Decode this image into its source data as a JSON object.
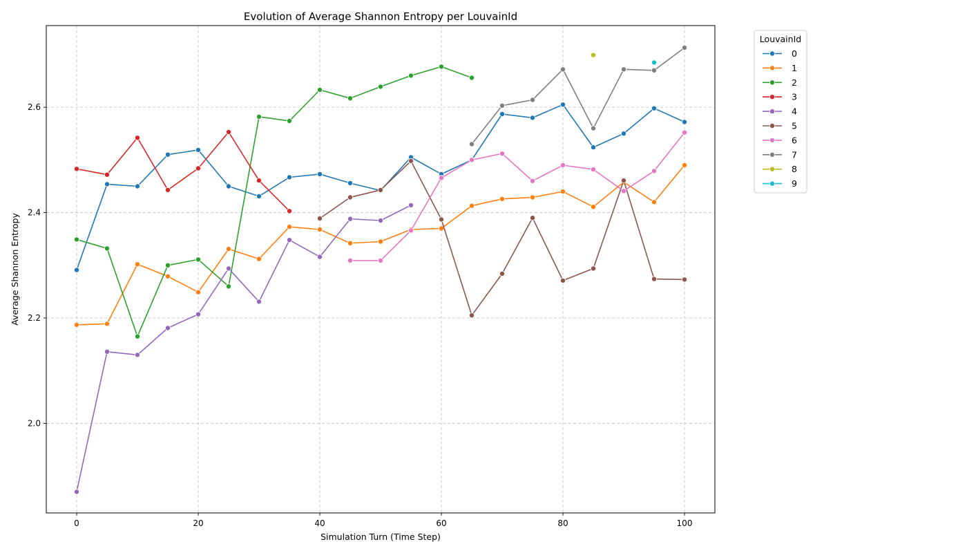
{
  "chart_data": {
    "type": "line",
    "title": "Evolution of Average Shannon Entropy per LouvainId",
    "xlabel": "Simulation Turn (Time Step)",
    "ylabel": "Average Shannon Entropy",
    "xlim": [
      -5,
      105
    ],
    "ylim": [
      1.83,
      2.755
    ],
    "xticks": [
      0,
      20,
      40,
      60,
      80,
      100
    ],
    "yticks": [
      2.0,
      2.2,
      2.4,
      2.6
    ],
    "grid": true,
    "legend_title": "LouvainId",
    "legend_position": "outside-right",
    "series": [
      {
        "name": "0",
        "color": "#1f77b4",
        "points": [
          [
            0,
            2.291
          ],
          [
            5,
            2.454
          ],
          [
            10,
            2.45
          ],
          [
            15,
            2.51
          ],
          [
            20,
            2.519
          ],
          [
            25,
            2.45
          ],
          [
            30,
            2.431
          ],
          [
            35,
            2.467
          ],
          [
            40,
            2.473
          ],
          [
            45,
            2.456
          ],
          [
            50,
            2.442
          ],
          [
            55,
            2.505
          ],
          [
            60,
            2.473
          ],
          [
            65,
            2.5
          ],
          [
            70,
            2.587
          ],
          [
            75,
            2.58
          ],
          [
            80,
            2.605
          ],
          [
            85,
            2.524
          ],
          [
            90,
            2.55
          ],
          [
            95,
            2.598
          ],
          [
            100,
            2.572
          ]
        ]
      },
      {
        "name": "1",
        "color": "#ff7f0e",
        "points": [
          [
            0,
            2.187
          ],
          [
            5,
            2.189
          ],
          [
            10,
            2.302
          ],
          [
            15,
            2.279
          ],
          [
            20,
            2.249
          ],
          [
            25,
            2.331
          ],
          [
            30,
            2.312
          ],
          [
            35,
            2.373
          ],
          [
            40,
            2.368
          ],
          [
            45,
            2.342
          ],
          [
            50,
            2.345
          ],
          [
            55,
            2.368
          ],
          [
            60,
            2.37
          ],
          [
            65,
            2.413
          ],
          [
            70,
            2.426
          ],
          [
            75,
            2.429
          ],
          [
            80,
            2.44
          ],
          [
            85,
            2.411
          ],
          [
            90,
            2.458
          ],
          [
            95,
            2.42
          ],
          [
            100,
            2.49
          ]
        ]
      },
      {
        "name": "2",
        "color": "#2ca02c",
        "points": [
          [
            0,
            2.349
          ],
          [
            5,
            2.332
          ],
          [
            10,
            2.165
          ],
          [
            15,
            2.3
          ],
          [
            20,
            2.311
          ],
          [
            25,
            2.26
          ],
          [
            30,
            2.582
          ],
          [
            35,
            2.574
          ],
          [
            40,
            2.633
          ],
          [
            45,
            2.617
          ],
          [
            50,
            2.639
          ],
          [
            55,
            2.66
          ],
          [
            60,
            2.677
          ],
          [
            65,
            2.656
          ]
        ]
      },
      {
        "name": "3",
        "color": "#d62728",
        "points": [
          [
            0,
            2.483
          ],
          [
            5,
            2.472
          ],
          [
            10,
            2.542
          ],
          [
            15,
            2.443
          ],
          [
            20,
            2.484
          ],
          [
            25,
            2.553
          ],
          [
            30,
            2.461
          ],
          [
            35,
            2.403
          ]
        ]
      },
      {
        "name": "4",
        "color": "#9467bd",
        "points": [
          [
            0,
            1.87
          ],
          [
            5,
            2.136
          ],
          [
            10,
            2.13
          ],
          [
            15,
            2.181
          ],
          [
            20,
            2.207
          ],
          [
            25,
            2.294
          ],
          [
            30,
            2.231
          ],
          [
            35,
            2.348
          ],
          [
            40,
            2.316
          ],
          [
            45,
            2.388
          ],
          [
            50,
            2.385
          ],
          [
            55,
            2.414
          ]
        ]
      },
      {
        "name": "5",
        "color": "#8c564b",
        "points": [
          [
            40,
            2.389
          ],
          [
            45,
            2.429
          ],
          [
            50,
            2.443
          ],
          [
            55,
            2.498
          ],
          [
            60,
            2.387
          ],
          [
            65,
            2.205
          ],
          [
            70,
            2.284
          ],
          [
            75,
            2.39
          ],
          [
            80,
            2.271
          ],
          [
            85,
            2.294
          ],
          [
            90,
            2.461
          ],
          [
            95,
            2.274
          ],
          [
            100,
            2.273
          ]
        ]
      },
      {
        "name": "6",
        "color": "#e377c2",
        "points": [
          [
            45,
            2.309
          ],
          [
            50,
            2.309
          ],
          [
            55,
            2.366
          ],
          [
            60,
            2.466
          ],
          [
            65,
            2.5
          ],
          [
            70,
            2.512
          ],
          [
            75,
            2.46
          ],
          [
            80,
            2.49
          ],
          [
            85,
            2.482
          ],
          [
            90,
            2.441
          ],
          [
            95,
            2.479
          ],
          [
            100,
            2.552
          ]
        ]
      },
      {
        "name": "7",
        "color": "#7f7f7f",
        "points": [
          [
            65,
            2.53
          ],
          [
            70,
            2.603
          ],
          [
            75,
            2.614
          ],
          [
            80,
            2.672
          ],
          [
            85,
            2.56
          ],
          [
            90,
            2.672
          ],
          [
            95,
            2.67
          ],
          [
            100,
            2.713
          ]
        ]
      },
      {
        "name": "8",
        "color": "#bcbd22",
        "points": [
          [
            85,
            2.699
          ]
        ]
      },
      {
        "name": "9",
        "color": "#17becf",
        "points": [
          [
            95,
            2.685
          ]
        ]
      }
    ]
  }
}
